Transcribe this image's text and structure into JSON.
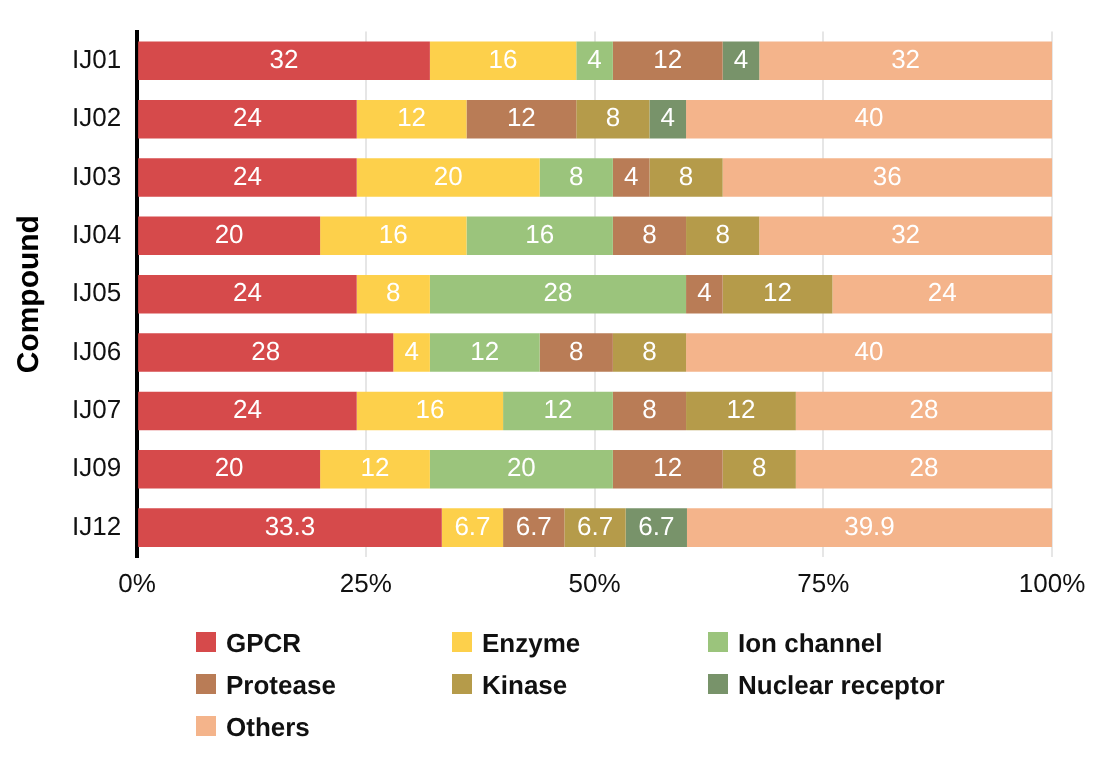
{
  "chart_data": {
    "type": "bar",
    "orientation": "horizontal",
    "stacked": true,
    "ylabel": "Compound",
    "categories": [
      "IJ01",
      "IJ02",
      "IJ03",
      "IJ04",
      "IJ05",
      "IJ06",
      "IJ07",
      "IJ09",
      "IJ12"
    ],
    "series": [
      {
        "name": "GPCR",
        "color": "#d64a4b",
        "values": [
          32,
          24,
          24,
          20,
          24,
          28,
          24,
          20,
          33.3
        ]
      },
      {
        "name": "Enzyme",
        "color": "#fdd04b",
        "values": [
          16,
          12,
          20,
          16,
          8,
          4,
          16,
          12,
          6.7
        ]
      },
      {
        "name": "Ion channel",
        "color": "#9bc47c",
        "values": [
          4,
          null,
          8,
          16,
          28,
          12,
          12,
          20,
          null
        ]
      },
      {
        "name": "Protease",
        "color": "#b97c56",
        "values": [
          12,
          12,
          4,
          8,
          4,
          8,
          8,
          12,
          6.7
        ]
      },
      {
        "name": "Kinase",
        "color": "#b59b4a",
        "values": [
          null,
          8,
          8,
          8,
          12,
          8,
          12,
          8,
          6.7
        ]
      },
      {
        "name": "Nuclear receptor",
        "color": "#78936a",
        "values": [
          4,
          4,
          null,
          null,
          null,
          null,
          null,
          null,
          6.7
        ]
      },
      {
        "name": "Others",
        "color": "#f4b48b",
        "values": [
          32,
          40,
          36,
          32,
          24,
          40,
          28,
          28,
          39.9
        ]
      }
    ],
    "xlim": [
      0,
      100
    ],
    "xticks": [
      {
        "value": 0,
        "label": "0%"
      },
      {
        "value": 25,
        "label": "25%"
      },
      {
        "value": 50,
        "label": "50%"
      },
      {
        "value": 75,
        "label": "75%"
      },
      {
        "value": 100,
        "label": "100%"
      }
    ],
    "grid": "x",
    "legend": "bottom",
    "data_labels": true
  }
}
